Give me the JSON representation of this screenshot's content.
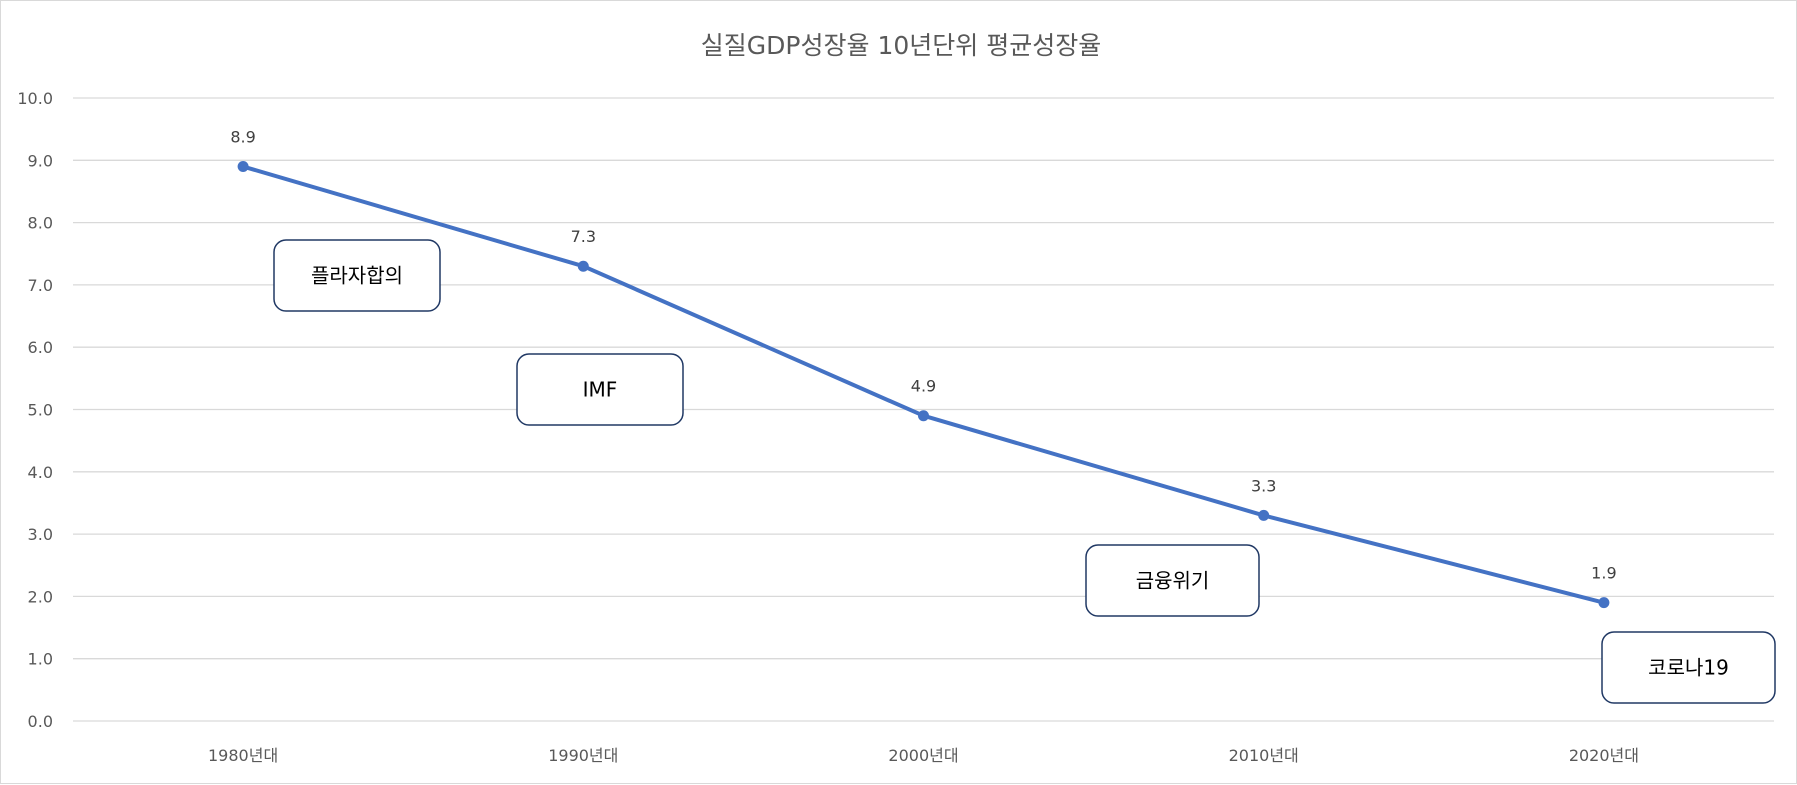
{
  "chart_data": {
    "type": "line",
    "title": "실질GDP성장율 10년단위 평균성장율",
    "categories": [
      "1980년대",
      "1990년대",
      "2000년대",
      "2010년대",
      "2020년대"
    ],
    "series": [
      {
        "values": [
          8.9,
          7.3,
          4.9,
          3.3,
          1.9
        ],
        "color": "#4472c4"
      }
    ],
    "data_labels": [
      "8.9",
      "7.3",
      "4.9",
      "3.3",
      "1.9"
    ],
    "ylim": [
      0,
      10
    ],
    "y_ticks": [
      "0.0",
      "1.0",
      "2.0",
      "3.0",
      "4.0",
      "5.0",
      "6.0",
      "7.0",
      "8.0",
      "9.0",
      "10.0"
    ],
    "grid": true,
    "legend": "none",
    "annotations": [
      {
        "text": "플라자합의"
      },
      {
        "text": "IMF"
      },
      {
        "text": "금융위기"
      },
      {
        "text": "코로나19"
      }
    ]
  }
}
